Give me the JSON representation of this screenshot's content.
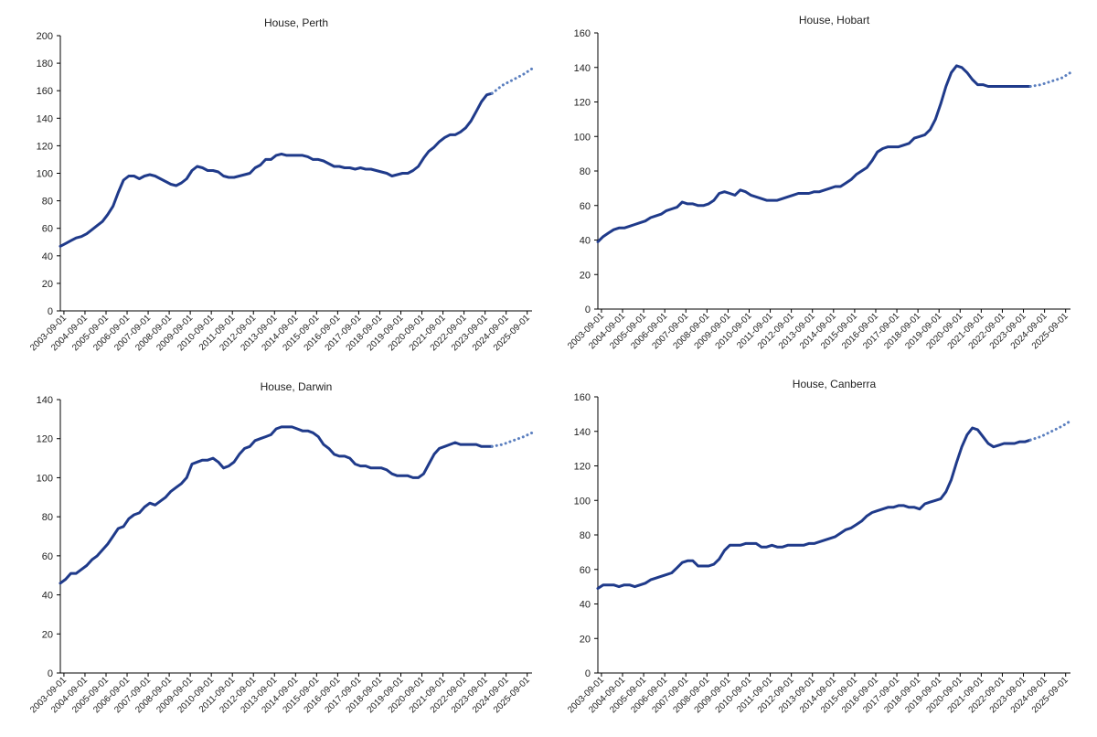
{
  "chart_data": [
    {
      "type": "line",
      "title": "House, Perth",
      "ylim": [
        0,
        200
      ],
      "yticks": [
        0,
        20,
        40,
        60,
        80,
        100,
        120,
        140,
        160,
        180,
        200
      ],
      "xticks": [
        "2003-09-01",
        "2004-09-01",
        "2005-09-01",
        "2006-09-01",
        "2007-09-01",
        "2008-09-01",
        "2009-09-01",
        "2010-09-01",
        "2011-09-01",
        "2012-09-01",
        "2013-09-01",
        "2014-09-01",
        "2015-09-01",
        "2016-09-01",
        "2017-09-01",
        "2018-09-01",
        "2019-09-01",
        "2020-09-01",
        "2021-09-01",
        "2022-09-01",
        "2023-09-01",
        "2024-09-01",
        "2025-09-01"
      ],
      "x_range": [
        2003.5,
        2025.9
      ],
      "series": [
        {
          "style": "solid",
          "x": [
            2003.5,
            2003.75,
            2004.0,
            2004.25,
            2004.5,
            2004.75,
            2005.0,
            2005.25,
            2005.5,
            2005.75,
            2006.0,
            2006.25,
            2006.5,
            2006.75,
            2007.0,
            2007.25,
            2007.5,
            2007.75,
            2008.0,
            2008.25,
            2008.5,
            2008.75,
            2009.0,
            2009.25,
            2009.5,
            2009.75,
            2010.0,
            2010.25,
            2010.5,
            2010.75,
            2011.0,
            2011.25,
            2011.5,
            2011.75,
            2012.0,
            2012.25,
            2012.5,
            2012.75,
            2013.0,
            2013.25,
            2013.5,
            2013.75,
            2014.0,
            2014.25,
            2014.5,
            2014.75,
            2015.0,
            2015.25,
            2015.5,
            2015.75,
            2016.0,
            2016.25,
            2016.5,
            2016.75,
            2017.0,
            2017.25,
            2017.5,
            2017.75,
            2018.0,
            2018.25,
            2018.5,
            2018.75,
            2019.0,
            2019.25,
            2019.5,
            2019.75,
            2020.0,
            2020.25,
            2020.5,
            2020.75,
            2021.0,
            2021.25,
            2021.5,
            2021.75,
            2022.0,
            2022.25,
            2022.5,
            2022.75,
            2023.0,
            2023.25,
            2023.5,
            2023.75,
            2024.0
          ],
          "values": [
            47,
            49,
            51,
            53,
            54,
            56,
            59,
            62,
            65,
            70,
            76,
            86,
            95,
            98,
            98,
            96,
            98,
            99,
            98,
            96,
            94,
            92,
            91,
            93,
            96,
            102,
            105,
            104,
            102,
            102,
            101,
            98,
            97,
            97,
            98,
            99,
            100,
            104,
            106,
            110,
            110,
            113,
            114,
            113,
            113,
            113,
            113,
            112,
            110,
            110,
            109,
            107,
            105,
            105,
            104,
            104,
            103,
            104,
            103,
            103,
            102,
            101,
            100,
            98,
            99,
            100,
            100,
            102,
            105,
            111,
            116,
            119,
            123,
            126,
            128,
            128,
            130,
            133,
            138,
            145,
            152,
            157,
            158
          ]
        },
        {
          "style": "dotted",
          "x": [
            2024.0,
            2024.5,
            2025.0,
            2025.5,
            2025.9
          ],
          "values": [
            158,
            164,
            168,
            172,
            176
          ]
        }
      ]
    },
    {
      "type": "line",
      "title": "House, Hobart",
      "ylim": [
        0,
        160
      ],
      "yticks": [
        0,
        20,
        40,
        60,
        80,
        100,
        120,
        140,
        160
      ],
      "xticks": [
        "2003-09-01",
        "2004-09-01",
        "2005-09-01",
        "2006-09-01",
        "2007-09-01",
        "2008-09-01",
        "2009-09-01",
        "2010-09-01",
        "2011-09-01",
        "2012-09-01",
        "2013-09-01",
        "2014-09-01",
        "2015-09-01",
        "2016-09-01",
        "2017-09-01",
        "2018-09-01",
        "2019-09-01",
        "2020-09-01",
        "2021-09-01",
        "2022-09-01",
        "2023-09-01",
        "2024-09-01",
        "2025-09-01"
      ],
      "x_range": [
        2003.5,
        2025.9
      ],
      "series": [
        {
          "style": "solid",
          "x": [
            2003.5,
            2003.75,
            2004.0,
            2004.25,
            2004.5,
            2004.75,
            2005.0,
            2005.25,
            2005.5,
            2005.75,
            2006.0,
            2006.25,
            2006.5,
            2006.75,
            2007.0,
            2007.25,
            2007.5,
            2007.75,
            2008.0,
            2008.25,
            2008.5,
            2008.75,
            2009.0,
            2009.25,
            2009.5,
            2009.75,
            2010.0,
            2010.25,
            2010.5,
            2010.75,
            2011.0,
            2011.25,
            2011.5,
            2011.75,
            2012.0,
            2012.25,
            2012.5,
            2012.75,
            2013.0,
            2013.25,
            2013.5,
            2013.75,
            2014.0,
            2014.25,
            2014.5,
            2014.75,
            2015.0,
            2015.25,
            2015.5,
            2015.75,
            2016.0,
            2016.25,
            2016.5,
            2016.75,
            2017.0,
            2017.25,
            2017.5,
            2017.75,
            2018.0,
            2018.25,
            2018.5,
            2018.75,
            2019.0,
            2019.25,
            2019.5,
            2019.75,
            2020.0,
            2020.25,
            2020.5,
            2020.75,
            2021.0,
            2021.25,
            2021.5,
            2021.75,
            2022.0,
            2022.25,
            2022.5,
            2022.75,
            2023.0,
            2023.25,
            2023.5,
            2023.75,
            2024.0
          ],
          "values": [
            39,
            42,
            44,
            46,
            47,
            47,
            48,
            49,
            50,
            51,
            53,
            54,
            55,
            57,
            58,
            59,
            62,
            61,
            61,
            60,
            60,
            61,
            63,
            67,
            68,
            67,
            66,
            69,
            68,
            66,
            65,
            64,
            63,
            63,
            63,
            64,
            65,
            66,
            67,
            67,
            67,
            68,
            68,
            69,
            70,
            71,
            71,
            73,
            75,
            78,
            80,
            82,
            86,
            91,
            93,
            94,
            94,
            94,
            95,
            96,
            99,
            100,
            101,
            104,
            110,
            119,
            129,
            137,
            141,
            140,
            137,
            133,
            130,
            130,
            129,
            129,
            129,
            129,
            129,
            129,
            129,
            129,
            129
          ]
        },
        {
          "style": "dotted",
          "x": [
            2024.0,
            2024.5,
            2025.0,
            2025.5,
            2025.9
          ],
          "values": [
            129,
            130,
            132,
            134,
            137
          ]
        }
      ]
    },
    {
      "type": "line",
      "title": "House, Darwin",
      "ylim": [
        0,
        140
      ],
      "yticks": [
        0,
        20,
        40,
        60,
        80,
        100,
        120,
        140
      ],
      "xticks": [
        "2003-09-01",
        "2004-09-01",
        "2005-09-01",
        "2006-09-01",
        "2007-09-01",
        "2008-09-01",
        "2009-09-01",
        "2010-09-01",
        "2011-09-01",
        "2012-09-01",
        "2013-09-01",
        "2014-09-01",
        "2015-09-01",
        "2016-09-01",
        "2017-09-01",
        "2018-09-01",
        "2019-09-01",
        "2020-09-01",
        "2021-09-01",
        "2022-09-01",
        "2023-09-01",
        "2024-09-01",
        "2025-09-01"
      ],
      "x_range": [
        2003.5,
        2025.9
      ],
      "series": [
        {
          "style": "solid",
          "x": [
            2003.5,
            2003.75,
            2004.0,
            2004.25,
            2004.5,
            2004.75,
            2005.0,
            2005.25,
            2005.5,
            2005.75,
            2006.0,
            2006.25,
            2006.5,
            2006.75,
            2007.0,
            2007.25,
            2007.5,
            2007.75,
            2008.0,
            2008.25,
            2008.5,
            2008.75,
            2009.0,
            2009.25,
            2009.5,
            2009.75,
            2010.0,
            2010.25,
            2010.5,
            2010.75,
            2011.0,
            2011.25,
            2011.5,
            2011.75,
            2012.0,
            2012.25,
            2012.5,
            2012.75,
            2013.0,
            2013.25,
            2013.5,
            2013.75,
            2014.0,
            2014.25,
            2014.5,
            2014.75,
            2015.0,
            2015.25,
            2015.5,
            2015.75,
            2016.0,
            2016.25,
            2016.5,
            2016.75,
            2017.0,
            2017.25,
            2017.5,
            2017.75,
            2018.0,
            2018.25,
            2018.5,
            2018.75,
            2019.0,
            2019.25,
            2019.5,
            2019.75,
            2020.0,
            2020.25,
            2020.5,
            2020.75,
            2021.0,
            2021.25,
            2021.5,
            2021.75,
            2022.0,
            2022.25,
            2022.5,
            2022.75,
            2023.0,
            2023.25,
            2023.5,
            2023.75,
            2024.0
          ],
          "values": [
            46,
            48,
            51,
            51,
            53,
            55,
            58,
            60,
            63,
            66,
            70,
            74,
            75,
            79,
            81,
            82,
            85,
            87,
            86,
            88,
            90,
            93,
            95,
            97,
            100,
            107,
            108,
            109,
            109,
            110,
            108,
            105,
            106,
            108,
            112,
            115,
            116,
            119,
            120,
            121,
            122,
            125,
            126,
            126,
            126,
            125,
            124,
            124,
            123,
            121,
            117,
            115,
            112,
            111,
            111,
            110,
            107,
            106,
            106,
            105,
            105,
            105,
            104,
            102,
            101,
            101,
            101,
            100,
            100,
            102,
            107,
            112,
            115,
            116,
            117,
            118,
            117,
            117,
            117,
            117,
            116,
            116,
            116
          ]
        },
        {
          "style": "dotted",
          "x": [
            2024.0,
            2024.5,
            2025.0,
            2025.5,
            2025.9
          ],
          "values": [
            116,
            117,
            119,
            121,
            123
          ]
        }
      ]
    },
    {
      "type": "line",
      "title": "House, Canberra",
      "ylim": [
        0,
        160
      ],
      "yticks": [
        0,
        20,
        40,
        60,
        80,
        100,
        120,
        140,
        160
      ],
      "xticks": [
        "2003-09-01",
        "2004-09-01",
        "2005-09-01",
        "2006-09-01",
        "2007-09-01",
        "2008-09-01",
        "2009-09-01",
        "2010-09-01",
        "2011-09-01",
        "2012-09-01",
        "2013-09-01",
        "2014-09-01",
        "2015-09-01",
        "2016-09-01",
        "2017-09-01",
        "2018-09-01",
        "2019-09-01",
        "2020-09-01",
        "2021-09-01",
        "2022-09-01",
        "2023-09-01",
        "2024-09-01",
        "2025-09-01"
      ],
      "x_range": [
        2003.5,
        2025.9
      ],
      "series": [
        {
          "style": "solid",
          "x": [
            2003.5,
            2003.75,
            2004.0,
            2004.25,
            2004.5,
            2004.75,
            2005.0,
            2005.25,
            2005.5,
            2005.75,
            2006.0,
            2006.25,
            2006.5,
            2006.75,
            2007.0,
            2007.25,
            2007.5,
            2007.75,
            2008.0,
            2008.25,
            2008.5,
            2008.75,
            2009.0,
            2009.25,
            2009.5,
            2009.75,
            2010.0,
            2010.25,
            2010.5,
            2010.75,
            2011.0,
            2011.25,
            2011.5,
            2011.75,
            2012.0,
            2012.25,
            2012.5,
            2012.75,
            2013.0,
            2013.25,
            2013.5,
            2013.75,
            2014.0,
            2014.25,
            2014.5,
            2014.75,
            2015.0,
            2015.25,
            2015.5,
            2015.75,
            2016.0,
            2016.25,
            2016.5,
            2016.75,
            2017.0,
            2017.25,
            2017.5,
            2017.75,
            2018.0,
            2018.25,
            2018.5,
            2018.75,
            2019.0,
            2019.25,
            2019.5,
            2019.75,
            2020.0,
            2020.25,
            2020.5,
            2020.75,
            2021.0,
            2021.25,
            2021.5,
            2021.75,
            2022.0,
            2022.25,
            2022.5,
            2022.75,
            2023.0,
            2023.25,
            2023.5,
            2023.75,
            2024.0
          ],
          "values": [
            49,
            51,
            51,
            51,
            50,
            51,
            51,
            50,
            51,
            52,
            54,
            55,
            56,
            57,
            58,
            61,
            64,
            65,
            65,
            62,
            62,
            62,
            63,
            66,
            71,
            74,
            74,
            74,
            75,
            75,
            75,
            73,
            73,
            74,
            73,
            73,
            74,
            74,
            74,
            74,
            75,
            75,
            76,
            77,
            78,
            79,
            81,
            83,
            84,
            86,
            88,
            91,
            93,
            94,
            95,
            96,
            96,
            97,
            97,
            96,
            96,
            95,
            98,
            99,
            100,
            101,
            105,
            112,
            122,
            131,
            138,
            142,
            141,
            137,
            133,
            131,
            132,
            133,
            133,
            133,
            134,
            134,
            135
          ]
        },
        {
          "style": "dotted",
          "x": [
            2024.0,
            2024.5,
            2025.0,
            2025.5,
            2025.9
          ],
          "values": [
            135,
            137,
            140,
            143,
            146
          ]
        }
      ]
    }
  ]
}
